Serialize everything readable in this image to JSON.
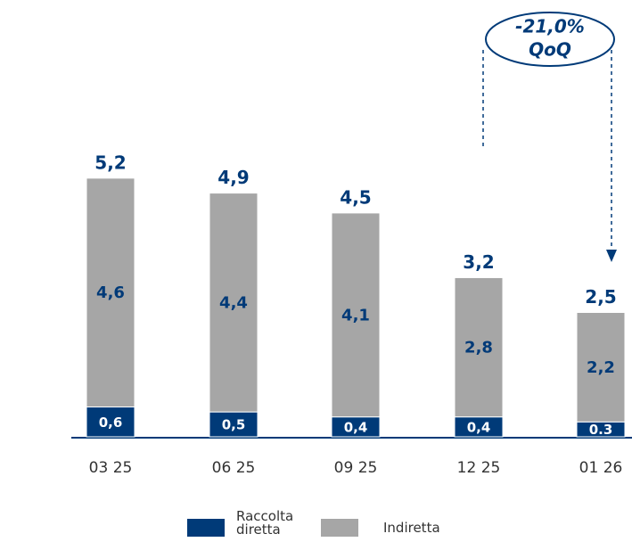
{
  "chart_data": {
    "type": "stacked_bar",
    "categories": [
      "03 25",
      "06 25",
      "09 25",
      "12 25",
      "01 26"
    ],
    "series": [
      {
        "name": "Raccolta diretta",
        "color": "#003a78",
        "values": [
          0.6,
          0.5,
          0.4,
          0.4,
          0.3
        ],
        "value_labels": [
          "0,6",
          "0,5",
          "0,4",
          "0,4",
          "0.3"
        ]
      },
      {
        "name": "Indiretta",
        "color": "#a6a6a6",
        "values": [
          4.6,
          4.4,
          4.1,
          2.8,
          2.2
        ],
        "value_labels": [
          "4,6",
          "4,4",
          "4,1",
          "2,8",
          "2,2"
        ]
      }
    ],
    "totals": [
      5.2,
      4.9,
      4.5,
      3.2,
      2.5
    ],
    "total_labels": [
      "5,2",
      "4,9",
      "4,5",
      "3,2",
      "2,5"
    ],
    "annotation": [
      "-21,0%",
      "QoQ"
    ]
  }
}
